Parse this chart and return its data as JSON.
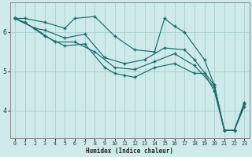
{
  "xlabel": "Humidex (Indice chaleur)",
  "bg_color": "#ceeaea",
  "line_color": "#1a6b6b",
  "grid_color": "#aacfcf",
  "xlim": [
    -0.5,
    23.5
  ],
  "ylim": [
    3.3,
    6.75
  ],
  "yticks": [
    4,
    5,
    6
  ],
  "xticks": [
    0,
    1,
    2,
    3,
    4,
    5,
    6,
    7,
    8,
    9,
    10,
    11,
    12,
    13,
    14,
    15,
    16,
    17,
    18,
    19,
    20,
    21,
    22,
    23
  ],
  "series": [
    {
      "x": [
        0,
        1,
        3,
        5,
        6,
        8,
        10,
        12,
        14,
        15,
        16,
        17,
        19,
        20,
        21,
        22,
        23
      ],
      "y": [
        6.35,
        6.35,
        6.25,
        6.1,
        6.35,
        6.4,
        5.9,
        5.55,
        5.5,
        6.35,
        6.15,
        6.0,
        5.3,
        4.65,
        3.5,
        3.5,
        4.2
      ]
    },
    {
      "x": [
        0,
        2,
        3,
        5,
        7,
        9,
        11,
        13,
        15,
        17,
        18,
        20,
        21,
        22,
        23
      ],
      "y": [
        6.35,
        6.1,
        6.05,
        5.85,
        5.95,
        5.35,
        5.2,
        5.3,
        5.6,
        5.55,
        5.3,
        4.65,
        3.5,
        3.5,
        4.2
      ]
    },
    {
      "x": [
        0,
        2,
        4,
        6,
        8,
        10,
        12,
        14,
        16,
        18,
        20,
        21,
        22,
        23
      ],
      "y": [
        6.35,
        6.1,
        5.75,
        5.75,
        5.5,
        5.1,
        5.05,
        5.25,
        5.45,
        5.15,
        4.6,
        3.5,
        3.5,
        4.15
      ]
    },
    {
      "x": [
        0,
        1,
        3,
        5,
        7,
        9,
        10,
        11,
        12,
        14,
        16,
        18,
        19,
        20,
        21,
        22,
        23
      ],
      "y": [
        6.35,
        6.25,
        5.9,
        5.65,
        5.7,
        5.1,
        4.95,
        4.9,
        4.85,
        5.1,
        5.2,
        4.95,
        4.95,
        4.5,
        3.5,
        3.5,
        4.1
      ]
    }
  ]
}
